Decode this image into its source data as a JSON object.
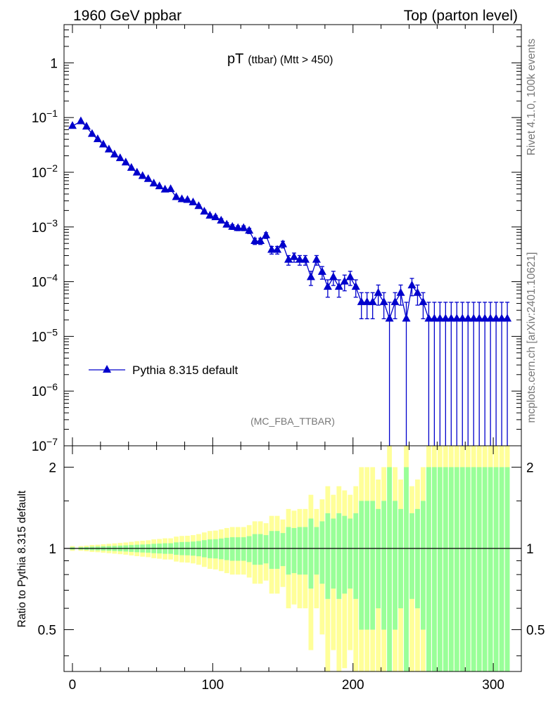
{
  "header": {
    "left": "1960 GeV ppbar",
    "right": "Top (parton level)"
  },
  "side_labels": {
    "rivet": "Rivet 4.1.0,  100k events",
    "mcplots": "mcplots.cern.ch [arXiv:2401.10621]"
  },
  "analysis_id": "(MC_FBA_TTBAR)",
  "colors": {
    "series": "#0000cc",
    "band_outer": "#ffff99",
    "band_inner": "#99ff99"
  },
  "chart_data": [
    {
      "type": "line",
      "title": "pT (ttbar) (Mtt > 450)",
      "title_main": "pT",
      "title_sub": "(ttbar) (Mtt > 450)",
      "xlabel": "",
      "ylabel": "",
      "yscale": "log",
      "xlim": [
        -6,
        320
      ],
      "ylim": [
        1e-07,
        5
      ],
      "y_tick_labels": [
        "1",
        "10^-1",
        "10^-2",
        "10^-3",
        "10^-4",
        "10^-5",
        "10^-6",
        "10^-7"
      ],
      "legend": {
        "label": "Pythia 8.315 default",
        "placement": "bottom-left"
      },
      "series": [
        {
          "name": "Pythia 8.315 default",
          "marker": "triangle",
          "x": [
            0,
            6,
            10,
            14,
            18,
            22,
            26,
            30,
            34,
            38,
            42,
            46,
            50,
            54,
            58,
            62,
            66,
            70,
            74,
            78,
            82,
            86,
            90,
            94,
            98,
            102,
            106,
            110,
            114,
            118,
            122,
            126,
            130,
            134,
            138,
            142,
            146,
            150,
            154,
            158,
            162,
            166,
            170,
            174,
            178,
            182,
            186,
            190,
            194,
            198,
            202,
            206,
            210,
            214,
            218,
            222,
            226,
            230,
            234,
            238,
            242,
            246,
            250,
            254,
            258,
            262,
            266,
            270,
            274,
            278,
            282,
            286,
            290,
            294,
            298,
            302,
            306,
            310
          ],
          "y": [
            0.07,
            0.085,
            0.068,
            0.05,
            0.04,
            0.032,
            0.026,
            0.021,
            0.018,
            0.015,
            0.012,
            0.0098,
            0.0085,
            0.0075,
            0.0062,
            0.0055,
            0.0048,
            0.0049,
            0.0035,
            0.0032,
            0.0031,
            0.0028,
            0.0024,
            0.0019,
            0.0016,
            0.0015,
            0.0013,
            0.0011,
            0.001,
            0.00095,
            0.00095,
            0.00085,
            0.00055,
            0.00055,
            0.0007,
            0.00038,
            0.00038,
            0.00048,
            0.00025,
            0.00028,
            0.00025,
            0.00025,
            0.00012,
            0.00025,
            0.00015,
            8e-05,
            0.00012,
            8e-05,
            0.0001,
            0.00012,
            8e-05,
            4.2e-05,
            4.2e-05,
            4.2e-05,
            6.2e-05,
            4.2e-05,
            2.1e-05,
            4.2e-05,
            6.2e-05,
            2.1e-05,
            8.5e-05,
            6.2e-05,
            4.2e-05,
            2.1e-05,
            2.1e-05,
            2.1e-05,
            2.1e-05,
            2.1e-05,
            2.1e-05,
            2.1e-05,
            2.1e-05,
            2.1e-05,
            2.1e-05,
            2.1e-05,
            2.1e-05,
            2.1e-05,
            2.1e-05,
            2.1e-05
          ],
          "yerr_rel": [
            0.01,
            0.01,
            0.012,
            0.015,
            0.016,
            0.018,
            0.02,
            0.022,
            0.024,
            0.026,
            0.029,
            0.032,
            0.034,
            0.036,
            0.04,
            0.042,
            0.045,
            0.045,
            0.053,
            0.056,
            0.057,
            0.06,
            0.065,
            0.073,
            0.08,
            0.082,
            0.088,
            0.095,
            0.1,
            0.1,
            0.1,
            0.11,
            0.13,
            0.13,
            0.12,
            0.16,
            0.16,
            0.14,
            0.2,
            0.19,
            0.2,
            0.2,
            0.29,
            0.2,
            0.26,
            0.35,
            0.29,
            0.35,
            0.32,
            0.29,
            0.35,
            0.5,
            0.5,
            0.5,
            0.4,
            0.5,
            1.0,
            0.5,
            0.4,
            1.0,
            0.35,
            0.4,
            0.5,
            1.0,
            1.0,
            1.0,
            1.0,
            1.0,
            1.0,
            1.0,
            1.0,
            1.0,
            1.0,
            1.0,
            1.0,
            1.0,
            1.0,
            1.0
          ]
        }
      ]
    },
    {
      "type": "area",
      "title": "",
      "xlabel": "",
      "ylabel": "Ratio to Pythia 8.315 default",
      "yscale": "log",
      "xlim": [
        -6,
        320
      ],
      "ylim": [
        0.35,
        2.4
      ],
      "x_ticks": [
        0,
        100,
        200,
        300
      ],
      "y_ticks": [
        0.5,
        1,
        2
      ],
      "y_tick_labels": [
        "0.5",
        "1",
        "2"
      ],
      "bins_x": [
        0,
        6,
        10,
        14,
        18,
        22,
        26,
        30,
        34,
        38,
        42,
        46,
        50,
        54,
        58,
        62,
        66,
        70,
        74,
        78,
        82,
        86,
        90,
        94,
        98,
        102,
        106,
        110,
        114,
        118,
        122,
        126,
        130,
        134,
        138,
        142,
        146,
        150,
        154,
        158,
        162,
        166,
        170,
        174,
        178,
        182,
        186,
        190,
        194,
        198,
        202,
        206,
        210,
        214,
        218,
        222,
        226,
        230,
        234,
        238,
        242,
        246,
        250,
        254,
        258,
        262,
        266,
        270,
        274,
        278,
        282,
        286,
        290,
        294,
        298,
        302,
        306,
        310
      ],
      "bin_width": 4,
      "inner_half_width": [
        0.01,
        0.01,
        0.012,
        0.015,
        0.016,
        0.018,
        0.02,
        0.022,
        0.024,
        0.026,
        0.029,
        0.032,
        0.034,
        0.036,
        0.04,
        0.042,
        0.045,
        0.045,
        0.053,
        0.056,
        0.057,
        0.06,
        0.065,
        0.073,
        0.08,
        0.082,
        0.088,
        0.095,
        0.1,
        0.1,
        0.1,
        0.11,
        0.13,
        0.13,
        0.12,
        0.16,
        0.16,
        0.14,
        0.2,
        0.19,
        0.2,
        0.2,
        0.29,
        0.2,
        0.26,
        0.35,
        0.29,
        0.35,
        0.32,
        0.29,
        0.35,
        0.5,
        0.5,
        0.5,
        0.4,
        0.5,
        1.0,
        0.5,
        0.4,
        1.0,
        0.35,
        0.4,
        0.5,
        1.0,
        1.0,
        1.0,
        1.0,
        1.0,
        1.0,
        1.0,
        1.0,
        1.0,
        1.0,
        1.0,
        1.0,
        1.0,
        1.0,
        1.0
      ],
      "outer_factor": 2.0,
      "reference_line": 1
    }
  ]
}
